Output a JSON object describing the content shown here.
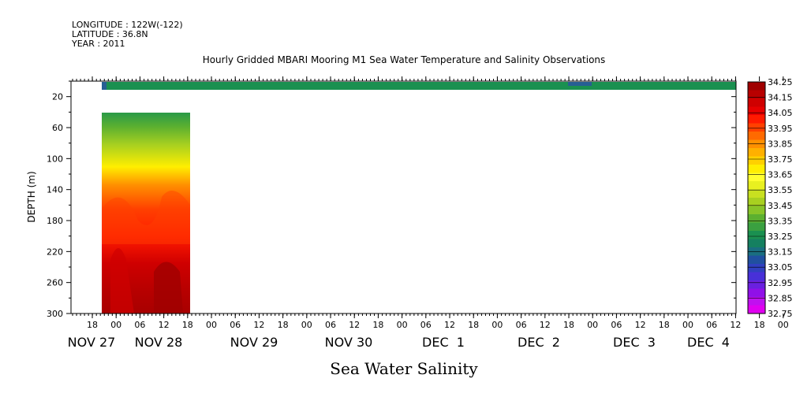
{
  "header": {
    "longitude": "LONGITUDE : 122W(-122)",
    "latitude": "LATITUDE : 36.8N",
    "year": "YEAR : 2011"
  },
  "chart_data": {
    "type": "heatmap",
    "title": "Hourly Gridded MBARI Mooring M1 Sea Water Temperature and Salinity Observations",
    "xlabel": "Sea Water Salinity",
    "ylabel": "DEPTH (m)",
    "ylim": [
      300,
      0
    ],
    "y_ticks": [
      "20",
      "60",
      "100",
      "140",
      "180",
      "220",
      "260",
      "300"
    ],
    "hour_ticks": [
      "18",
      "00",
      "06",
      "12",
      "18",
      "00",
      "06",
      "12",
      "18",
      "00",
      "06",
      "12",
      "18",
      "00",
      "06",
      "12",
      "18",
      "00",
      "06",
      "12",
      "18",
      "00",
      "06",
      "12",
      "18",
      "00",
      "06",
      "12",
      "18",
      "00",
      "06",
      "12"
    ],
    "date_labels": [
      "NOV 27",
      "NOV 28",
      "NOV 29",
      "NOV 30",
      "DEC  1",
      "DEC  2",
      "DEC  3",
      "DEC  4"
    ],
    "colorbar_levels": [
      "34.25",
      "34.15",
      "34.05",
      "33.95",
      "33.85",
      "33.75",
      "33.65",
      "33.55",
      "33.45",
      "33.35",
      "33.25",
      "33.15",
      "33.05",
      "32.95",
      "32.85",
      "32.75"
    ],
    "colorbar_colors": [
      "#a00000",
      "#b80000",
      "#cf0000",
      "#e60000",
      "#ff1a00",
      "#ff4000",
      "#ff6a00",
      "#ff9000",
      "#ffb000",
      "#ffd000",
      "#ffee00",
      "#ffff30",
      "#e8f020",
      "#c8e020",
      "#a8d020",
      "#88c428",
      "#5cb030",
      "#3aa040",
      "#1a9050",
      "#158060",
      "#1a6e80",
      "#2050a0",
      "#3040c0",
      "#4830d8",
      "#6a20e0",
      "#9010e8",
      "#c010f0",
      "#e000f0"
    ],
    "surface_band": {
      "depth": 10,
      "salinity_approx": 33.25,
      "time_range": "NOV 27 20:00 to DEC 4 end"
    },
    "profile_block": {
      "time_range": "NOV 27 20:00 to NOV 28 18:00",
      "depth_range": [
        38,
        300
      ],
      "salinity_range": [
        33.3,
        34.25
      ]
    }
  }
}
